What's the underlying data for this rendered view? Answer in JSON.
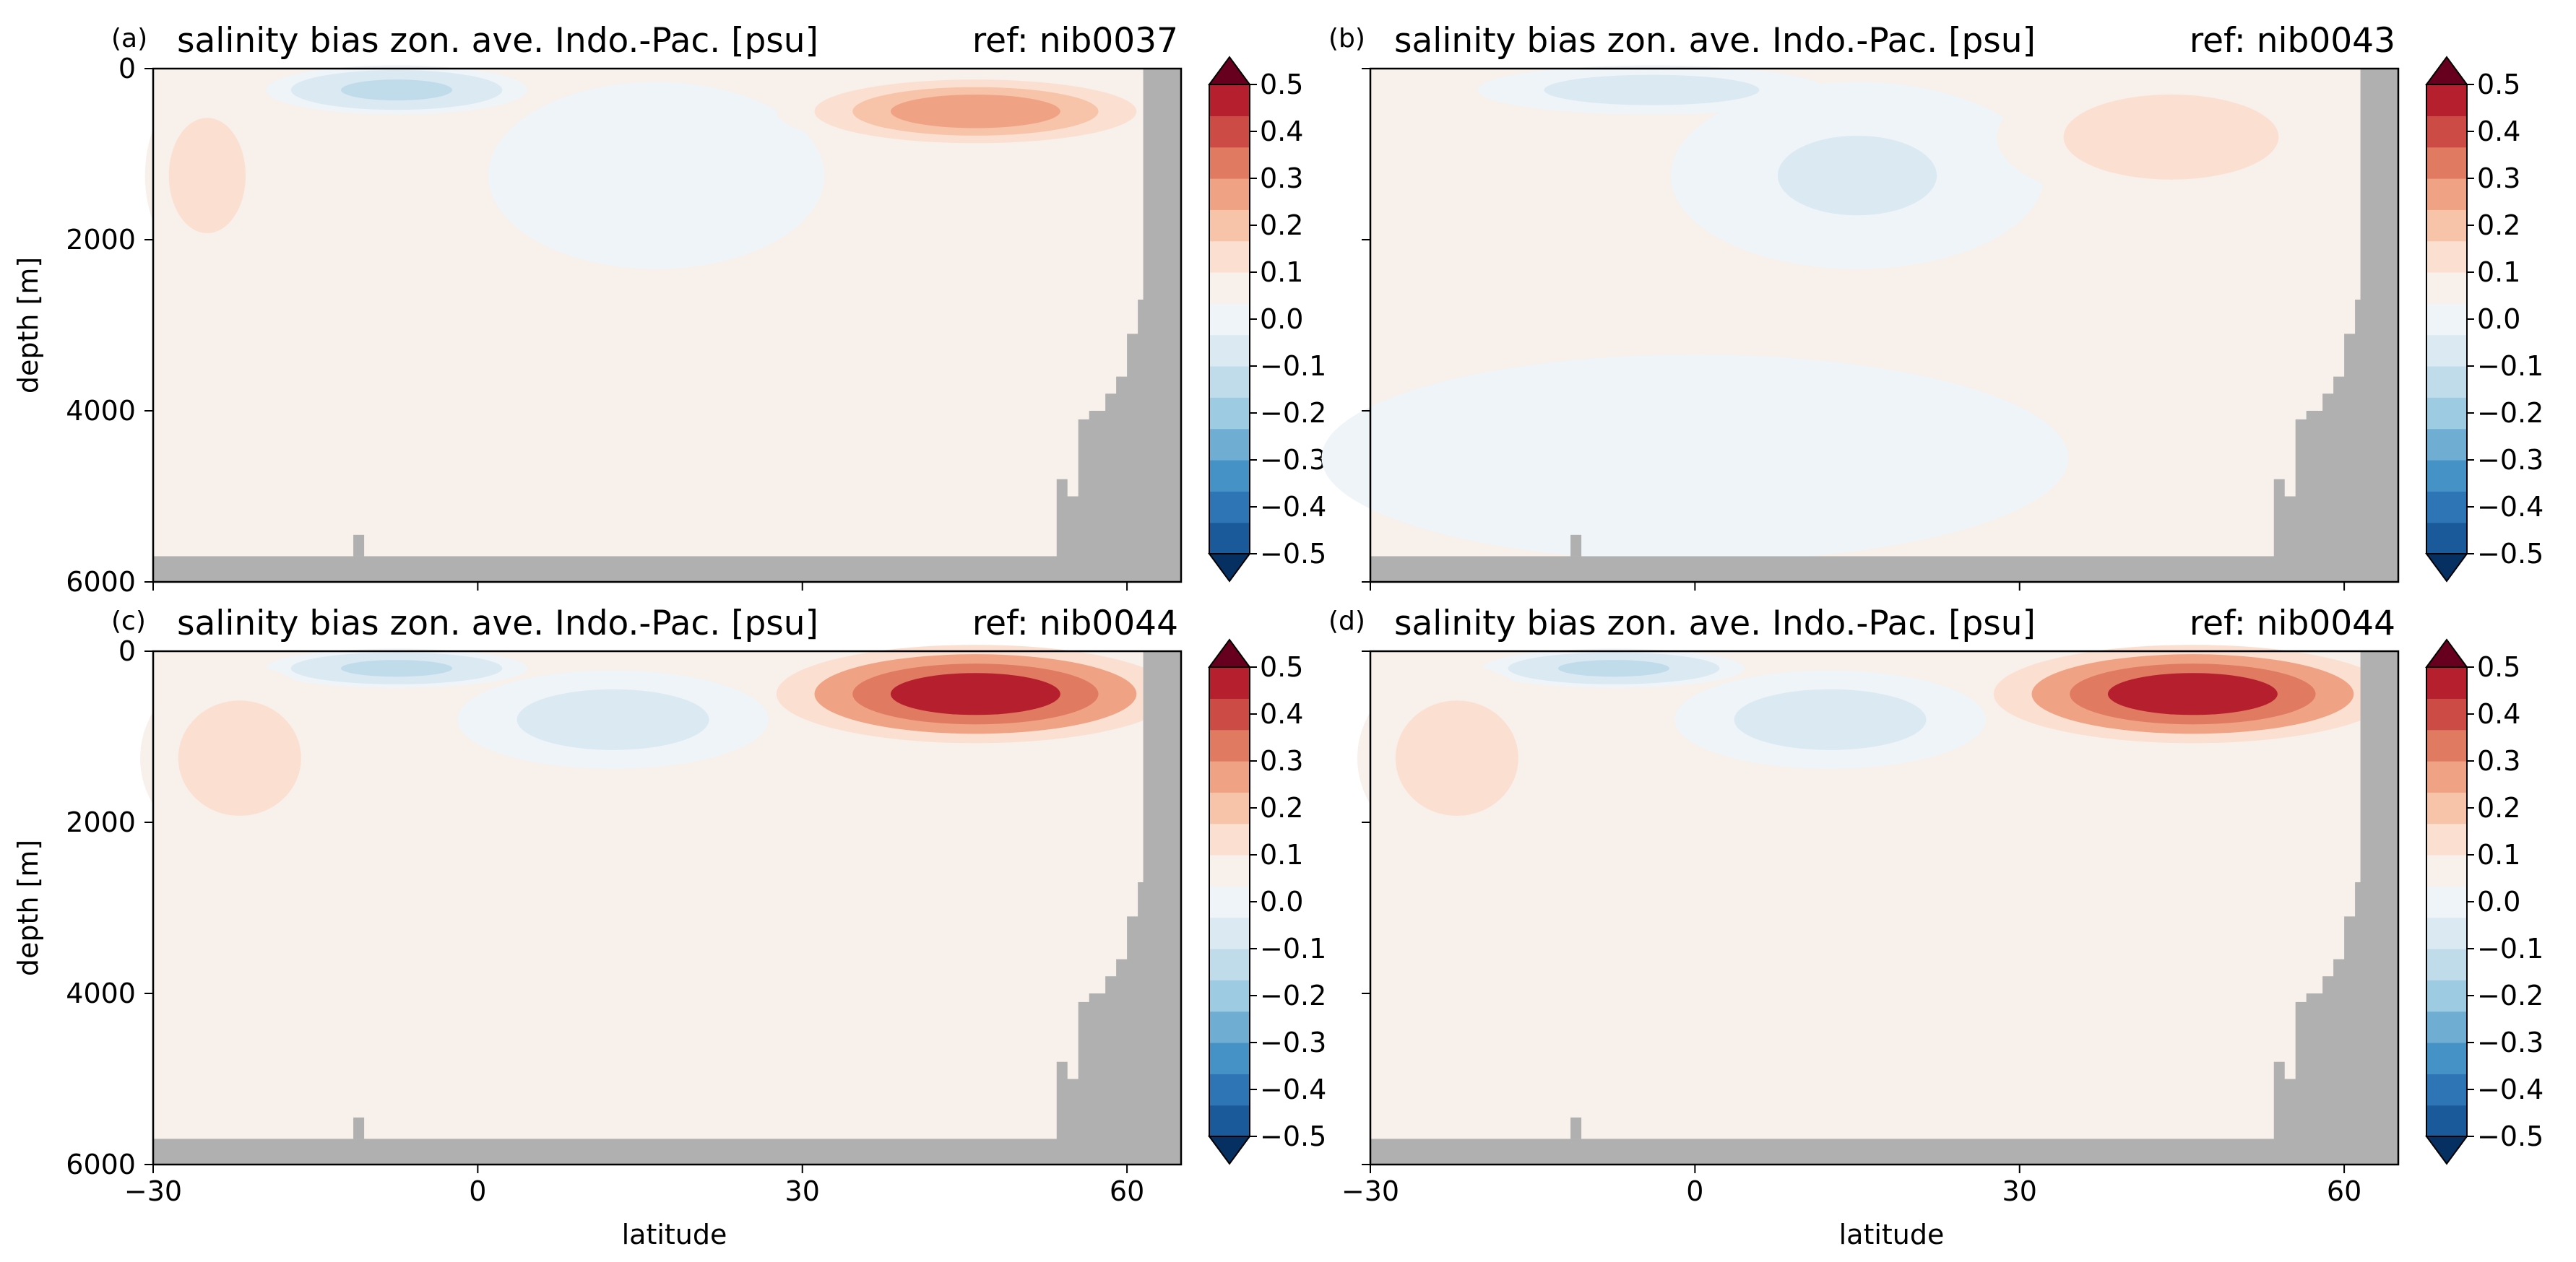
{
  "figure": {
    "panels": [
      {
        "tag": "(a)",
        "title": "salinity bias zon. ave. Indo.-Pac. [psu]",
        "ref": "ref: nib0037"
      },
      {
        "tag": "(b)",
        "title": "salinity bias zon. ave. Indo.-Pac. [psu]",
        "ref": "ref: nib0043"
      },
      {
        "tag": "(c)",
        "title": "salinity bias zon. ave. Indo.-Pac. [psu]",
        "ref": "ref: nib0044"
      },
      {
        "tag": "(d)",
        "title": "salinity bias zon. ave. Indo.-Pac. [psu]",
        "ref": "ref: nib0044"
      }
    ],
    "colorscale": [
      "#053061",
      "#1b5a9a",
      "#2d75b5",
      "#4492c6",
      "#6fadd3",
      "#9ccbe2",
      "#c0dceb",
      "#dbe9f2",
      "#eef4f7",
      "#f8f0eb",
      "#fbe0d2",
      "#f7c4aa",
      "#f0a384",
      "#e07b62",
      "#cc4b44",
      "#b61f2e",
      "#67001f"
    ]
  },
  "chart_data": [
    {
      "type": "heatmap",
      "panel": "(a)",
      "title": "salinity bias zon. ave. Indo.-Pac. [psu]",
      "annotation": "ref: nib0037",
      "xlabel": "",
      "ylabel": "depth [m]",
      "xlim": [
        -30,
        65
      ],
      "ylim": [
        6000,
        0
      ],
      "xticks": [
        "",
        "",
        "",
        ""
      ],
      "yticks": [
        "0",
        "2000",
        "4000",
        "6000"
      ],
      "colorbar": {
        "ticks": [
          "0.5",
          "0.4",
          "0.3",
          "0.2",
          "0.1",
          "0.0",
          "−0.1",
          "−0.2",
          "−0.3",
          "−0.4",
          "−0.5"
        ],
        "range": [
          -0.5,
          0.5
        ],
        "extend": "both"
      },
      "features": [
        {
          "lat": [
            -18,
            3
          ],
          "depth": [
            0,
            500
          ],
          "value": -0.15
        },
        {
          "lat": [
            3,
            30
          ],
          "depth": [
            300,
            2200
          ],
          "value": -0.05
        },
        {
          "lat": [
            30,
            62
          ],
          "depth": [
            100,
            900
          ],
          "value": 0.25
        },
        {
          "lat": [
            -30,
            -20
          ],
          "depth": [
            300,
            2200
          ],
          "value": 0.1
        }
      ]
    },
    {
      "type": "heatmap",
      "panel": "(b)",
      "title": "salinity bias zon. ave. Indo.-Pac. [psu]",
      "annotation": "ref: nib0043",
      "xlabel": "",
      "ylabel": "",
      "xlim": [
        -30,
        65
      ],
      "ylim": [
        6000,
        0
      ],
      "xticks": [
        "",
        "",
        "",
        ""
      ],
      "yticks": [
        "",
        "",
        "",
        ""
      ],
      "colorbar": {
        "ticks": [
          "0.5",
          "0.4",
          "0.3",
          "0.2",
          "0.1",
          "0.0",
          "−0.1",
          "−0.2",
          "−0.3",
          "−0.4",
          "−0.5"
        ],
        "range": [
          -0.5,
          0.5
        ],
        "extend": "both"
      },
      "features": [
        {
          "lat": [
            -18,
            10
          ],
          "depth": [
            0,
            500
          ],
          "value": -0.12
        },
        {
          "lat": [
            0,
            30
          ],
          "depth": [
            300,
            2200
          ],
          "value": -0.07
        },
        {
          "lat": [
            -30,
            30
          ],
          "depth": [
            3500,
            5600
          ],
          "value": -0.03
        },
        {
          "lat": [
            30,
            58
          ],
          "depth": [
            100,
            1500
          ],
          "value": 0.12
        }
      ]
    },
    {
      "type": "heatmap",
      "panel": "(c)",
      "title": "salinity bias zon. ave. Indo.-Pac. [psu]",
      "annotation": "ref: nib0044",
      "xlabel": "latitude",
      "ylabel": "depth [m]",
      "xlim": [
        -30,
        65
      ],
      "ylim": [
        6000,
        0
      ],
      "xticks": [
        "−30",
        "0",
        "30",
        "60"
      ],
      "yticks": [
        "0",
        "2000",
        "4000",
        "6000"
      ],
      "colorbar": {
        "ticks": [
          "0.5",
          "0.4",
          "0.3",
          "0.2",
          "0.1",
          "0.0",
          "−0.1",
          "−0.2",
          "−0.3",
          "−0.4",
          "−0.5"
        ],
        "range": [
          -0.5,
          0.5
        ],
        "extend": "both"
      },
      "features": [
        {
          "lat": [
            -18,
            3
          ],
          "depth": [
            0,
            400
          ],
          "value": -0.15
        },
        {
          "lat": [
            0,
            25
          ],
          "depth": [
            300,
            1300
          ],
          "value": -0.1
        },
        {
          "lat": [
            30,
            62
          ],
          "depth": [
            0,
            1000
          ],
          "value": 0.4
        },
        {
          "lat": [
            -30,
            -14
          ],
          "depth": [
            300,
            2200
          ],
          "value": 0.1
        }
      ]
    },
    {
      "type": "heatmap",
      "panel": "(d)",
      "title": "salinity bias zon. ave. Indo.-Pac. [psu]",
      "annotation": "ref: nib0044",
      "xlabel": "latitude",
      "ylabel": "",
      "xlim": [
        -30,
        65
      ],
      "ylim": [
        6000,
        0
      ],
      "xticks": [
        "−30",
        "0",
        "30",
        "60"
      ],
      "yticks": [
        "",
        "",
        "",
        ""
      ],
      "colorbar": {
        "ticks": [
          "0.5",
          "0.4",
          "0.3",
          "0.2",
          "0.1",
          "0.0",
          "−0.1",
          "−0.2",
          "−0.3",
          "−0.4",
          "−0.5"
        ],
        "range": [
          -0.5,
          0.5
        ],
        "extend": "both"
      },
      "features": [
        {
          "lat": [
            -18,
            3
          ],
          "depth": [
            0,
            400
          ],
          "value": -0.15
        },
        {
          "lat": [
            0,
            25
          ],
          "depth": [
            300,
            1300
          ],
          "value": -0.1
        },
        {
          "lat": [
            30,
            62
          ],
          "depth": [
            0,
            1000
          ],
          "value": 0.42
        },
        {
          "lat": [
            -30,
            -14
          ],
          "depth": [
            300,
            2200
          ],
          "value": 0.1
        }
      ]
    }
  ]
}
